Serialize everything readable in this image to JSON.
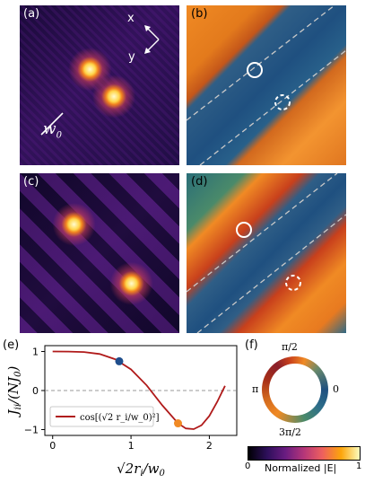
{
  "panels": {
    "a": {
      "label": "(a)",
      "axis_x": "x",
      "axis_y": "y",
      "scale_label": "w",
      "scale_sub": "0"
    },
    "b": {
      "label": "(b)"
    },
    "c": {
      "label": "(c)"
    },
    "d": {
      "label": "(d)"
    },
    "e": {
      "label": "(e)"
    },
    "f": {
      "label": "(f)",
      "phase_top": "π/2",
      "phase_left": "π",
      "phase_right": "0",
      "phase_bottom": "3π/2"
    }
  },
  "colorbar": {
    "min": "0",
    "max": "1",
    "label": "Normalized |E|",
    "colors": [
      "#000004",
      "#2d0f5a",
      "#6a1c81",
      "#b63679",
      "#ee605e",
      "#fca50a",
      "#fcfdbf"
    ]
  },
  "chart_data": {
    "type": "line",
    "title": "",
    "xlabel": "√2 r_i / w_0",
    "ylabel": "J_ii / (N J_0)",
    "xlim": [
      -0.1,
      2.35
    ],
    "ylim": [
      -1.15,
      1.15
    ],
    "xticks": [
      "0",
      "1",
      "2"
    ],
    "yticks": [
      "1",
      "0",
      "−1"
    ],
    "grid": false,
    "reference_line": {
      "y": 0,
      "style": "dashed"
    },
    "series": [
      {
        "name": "cos[(√2 r_i/w_0)²]",
        "color": "#b01a1a",
        "x": [
          0,
          0.2,
          0.4,
          0.6,
          0.8,
          1.0,
          1.2,
          1.4,
          1.6,
          1.7,
          1.8,
          1.9,
          2.0,
          2.1,
          2.2
        ],
        "y": [
          1.0,
          0.999,
          0.987,
          0.935,
          0.8,
          0.54,
          0.13,
          -0.38,
          -0.84,
          -0.97,
          -0.99,
          -0.89,
          -0.65,
          -0.29,
          0.12
        ]
      }
    ],
    "markers": [
      {
        "x": 0.85,
        "y": 0.75,
        "color": "#1f4e8c"
      },
      {
        "x": 1.6,
        "y": -0.84,
        "color": "#f08a24"
      }
    ],
    "legend_position": "bottom-left"
  }
}
